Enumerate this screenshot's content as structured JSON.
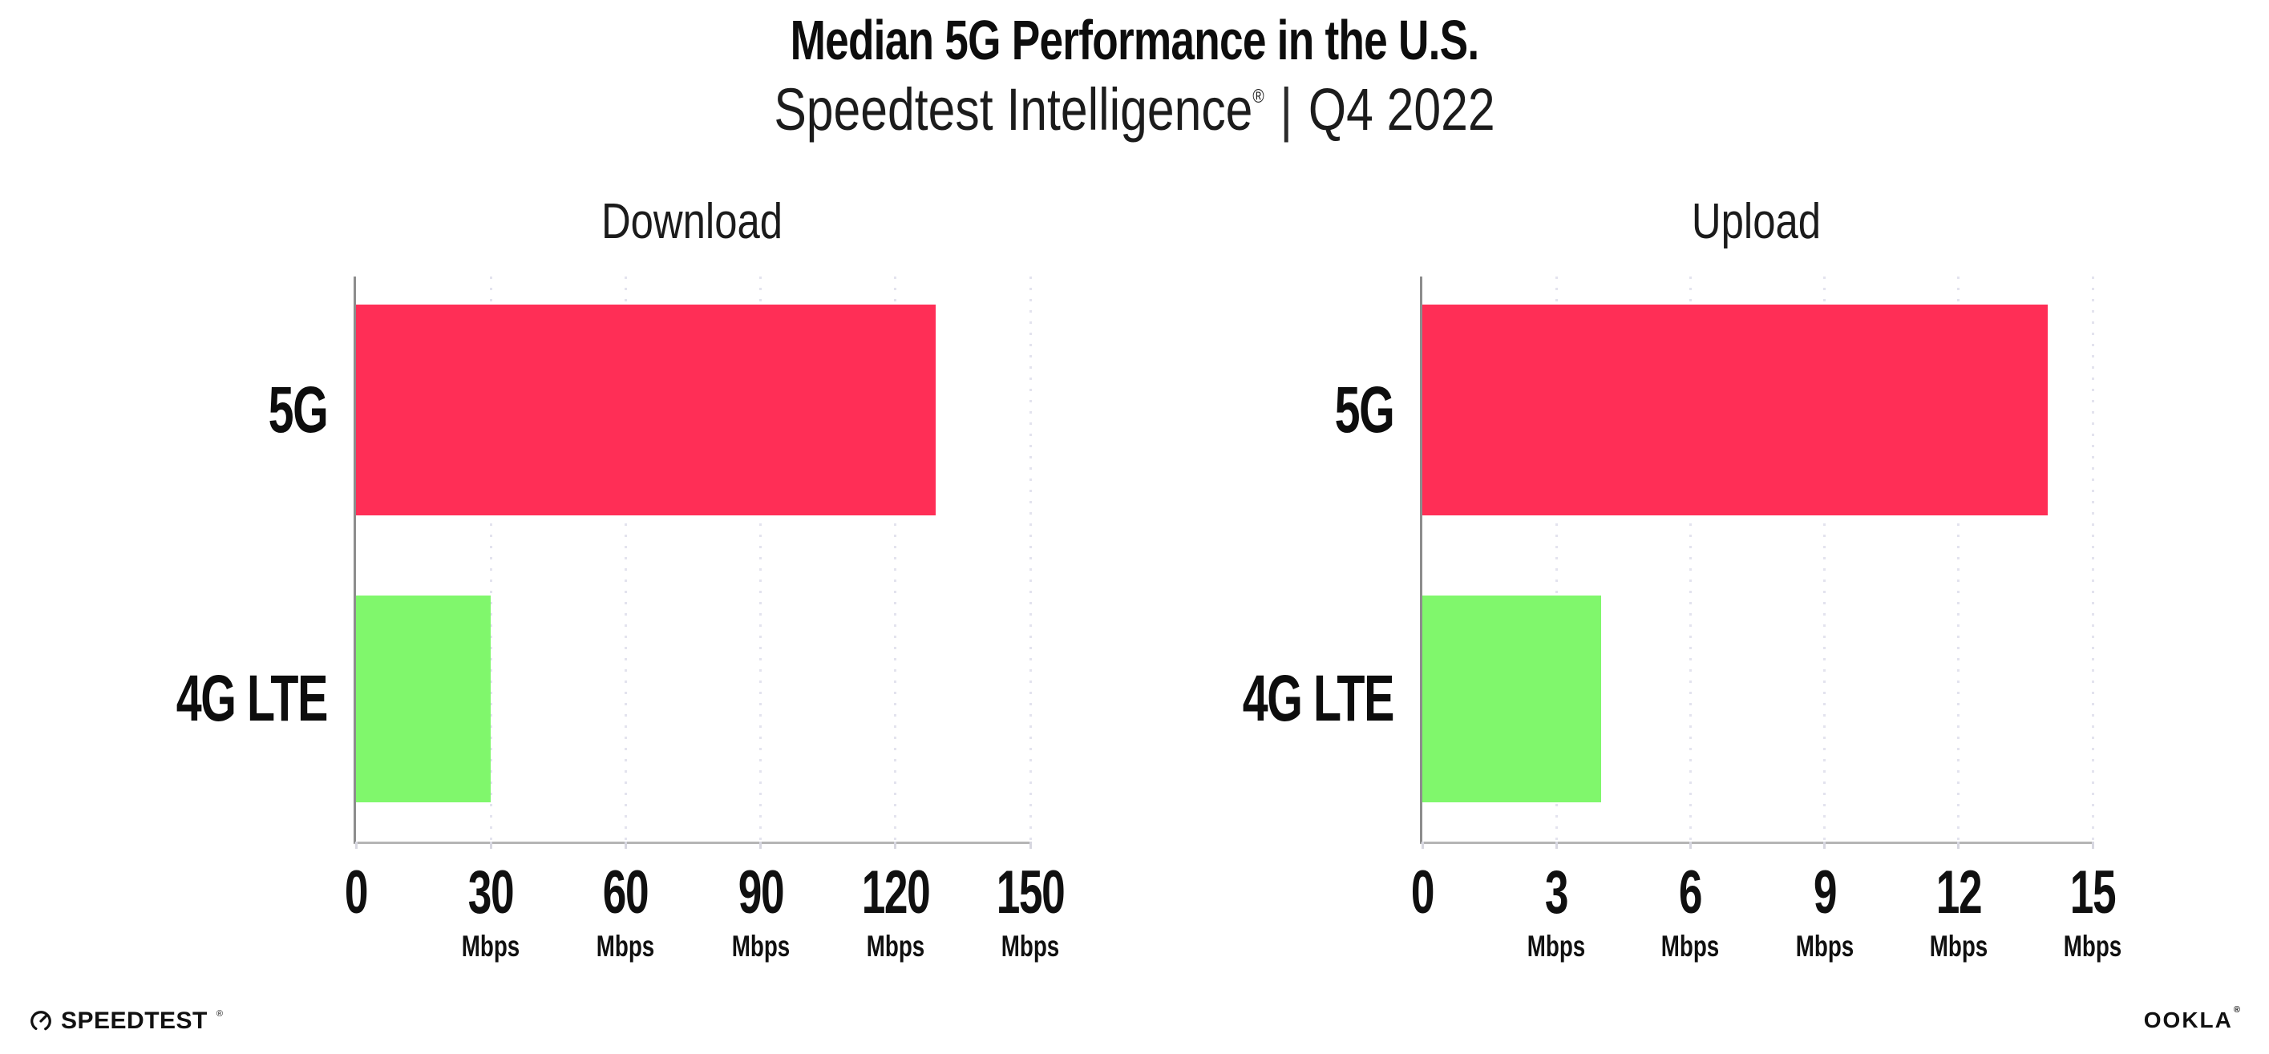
{
  "header": {
    "title": "Median 5G Performance in the U.S.",
    "subtitle": {
      "brand": "Speedtest Intelligence",
      "registered_mark": "®",
      "divider": "|",
      "period": "Q4 2022"
    }
  },
  "chart_data": [
    {
      "type": "bar",
      "orientation": "horizontal",
      "title": "Download",
      "categories": [
        "5G",
        "4G LTE"
      ],
      "values": [
        129,
        30
      ],
      "unit": "Mbps",
      "xlim": [
        0,
        150
      ],
      "xticks": [
        0,
        30,
        60,
        90,
        120,
        150
      ],
      "series_colors": [
        "#ff2e56",
        "#80f76c"
      ],
      "grid": "vertical-dotted",
      "legend": "none"
    },
    {
      "type": "bar",
      "orientation": "horizontal",
      "title": "Upload",
      "categories": [
        "5G",
        "4G LTE"
      ],
      "values": [
        14,
        4
      ],
      "unit": "Mbps",
      "xlim": [
        0,
        15
      ],
      "xticks": [
        0,
        3,
        6,
        9,
        12,
        15
      ],
      "series_colors": [
        "#ff2e56",
        "#80f76c"
      ],
      "grid": "vertical-dotted",
      "legend": "none"
    }
  ],
  "footer": {
    "speedtest_wordmark": "SPEEDTEST",
    "speedtest_mark": "®",
    "ookla_wordmark": "OOKLA",
    "ookla_mark": "®"
  }
}
